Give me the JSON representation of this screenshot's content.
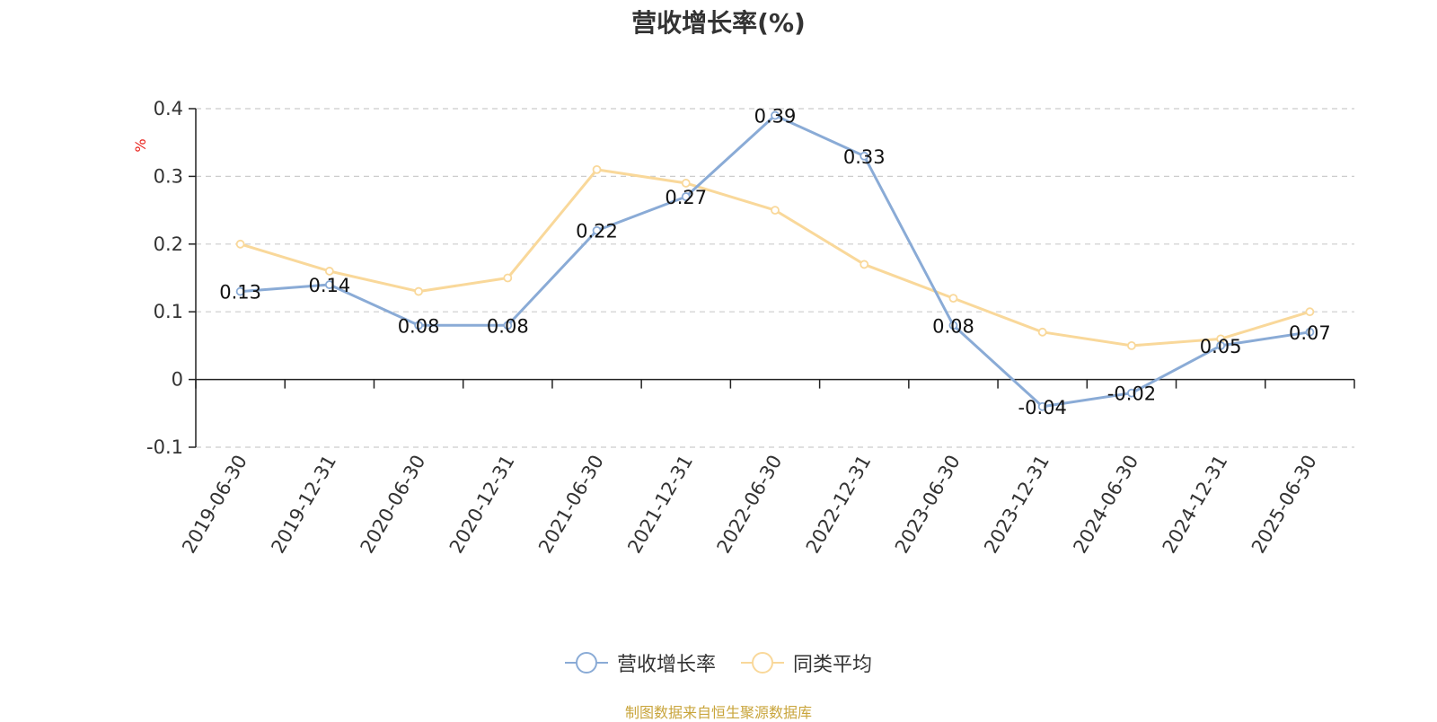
{
  "title": "营收增长率(%)",
  "source": "制图数据来自恒生聚源数据库",
  "colors": {
    "series1": "#8aabd6",
    "series2": "#f9d89a",
    "axis": "#222222",
    "grid": "#cccccc",
    "ylabel": "#e8211b"
  },
  "chart_data": {
    "type": "line",
    "title": "营收增长率(%)",
    "ylabel": "%",
    "ylim": [
      -0.1,
      0.4
    ],
    "yticks": [
      "0.4",
      "0.3",
      "0.2",
      "0.1",
      "0",
      "-0.1"
    ],
    "grid": true,
    "legend_position": "bottom",
    "categories": [
      "2019-06-30",
      "2019-12-31",
      "2020-06-30",
      "2020-12-31",
      "2021-06-30",
      "2021-12-31",
      "2022-06-30",
      "2022-12-31",
      "2023-06-30",
      "2023-12-31",
      "2024-06-30",
      "2024-12-31",
      "2025-06-30"
    ],
    "series": [
      {
        "name": "营收增长率",
        "values": [
          0.13,
          0.14,
          0.08,
          0.08,
          0.22,
          0.27,
          0.39,
          0.33,
          0.08,
          -0.04,
          -0.02,
          0.05,
          0.07
        ],
        "labels": [
          "0.13",
          "0.14",
          "0.08",
          "0.08",
          "0.22",
          "0.27",
          "0.39",
          "0.33",
          "0.08",
          "-0.04",
          "-0.02",
          "0.05",
          "0.07"
        ]
      },
      {
        "name": "同类平均",
        "values": [
          0.2,
          0.16,
          0.13,
          0.15,
          0.31,
          0.29,
          0.25,
          0.17,
          0.12,
          0.07,
          0.05,
          0.06,
          0.1
        ]
      }
    ]
  }
}
